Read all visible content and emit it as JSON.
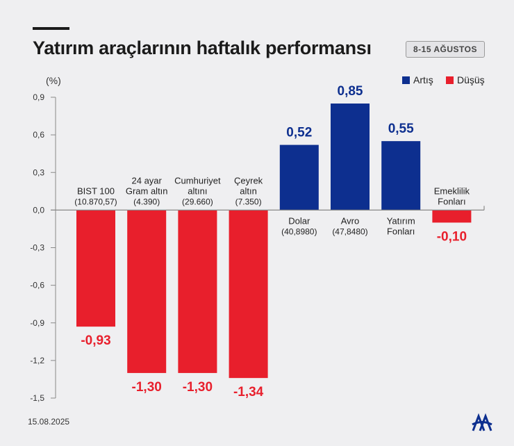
{
  "header": {
    "title": "Yatırım araçlarının haftalık performansı",
    "date_range": "8-15 AĞUSTOS"
  },
  "footer": {
    "date": "15.08.2025",
    "logo_icon": "aa-logo-icon"
  },
  "colors": {
    "increase": "#0d2f8f",
    "decrease": "#e81f2c",
    "axis": "#888888",
    "text": "#222222"
  },
  "chart_data": {
    "type": "bar",
    "unit_label": "(%)",
    "ylim": [
      -1.5,
      0.9
    ],
    "yticks": [
      "0,9",
      "0,6",
      "0,3",
      "0,0",
      "-0,3",
      "-0,6",
      "-0,9",
      "-1,2",
      "-1,5"
    ],
    "ytick_values": [
      0.9,
      0.6,
      0.3,
      0.0,
      -0.3,
      -0.6,
      -0.9,
      -1.2,
      -1.5
    ],
    "legend": {
      "increase": "Artış",
      "decrease": "Düşüş",
      "position": "top-right"
    },
    "grid": false,
    "bars": [
      {
        "name": [
          "BIST 100",
          "(10.870,57)"
        ],
        "value": -0.93,
        "label": "-0,93",
        "kind": "decrease"
      },
      {
        "name": [
          "24 ayar",
          "Gram altın",
          "(4.390)"
        ],
        "value": -1.3,
        "label": "-1,30",
        "kind": "decrease"
      },
      {
        "name": [
          "Cumhuriyet",
          "altını",
          "(29.660)"
        ],
        "value": -1.3,
        "label": "-1,30",
        "kind": "decrease"
      },
      {
        "name": [
          "Çeyrek",
          "altın",
          "(7.350)"
        ],
        "value": -1.34,
        "label": "-1,34",
        "kind": "decrease"
      },
      {
        "name": [
          "Dolar",
          "(40,8980)"
        ],
        "value": 0.52,
        "label": "0,52",
        "kind": "increase"
      },
      {
        "name": [
          "Avro",
          "(47,8480)"
        ],
        "value": 0.85,
        "label": "0,85",
        "kind": "increase"
      },
      {
        "name": [
          "Yatırım",
          "Fonları"
        ],
        "value": 0.55,
        "label": "0,55",
        "kind": "increase"
      },
      {
        "name": [
          "Emeklilik",
          "Fonları"
        ],
        "value": -0.1,
        "label": "-0,10",
        "kind": "decrease"
      }
    ]
  }
}
